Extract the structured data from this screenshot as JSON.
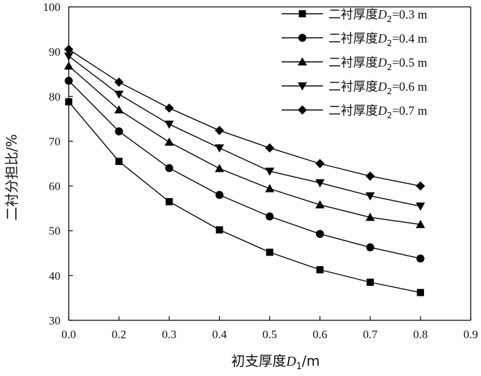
{
  "chart_data": {
    "type": "line",
    "title": "",
    "xlabel_prefix": "初支厚度",
    "xlabel_var": "D",
    "xlabel_sub": "1",
    "xlabel_unit": "/m",
    "ylabel": "二衬分担比/%",
    "xlim": [
      0.0,
      0.9
    ],
    "ylim": [
      30,
      100
    ],
    "x_ticks": [
      "0.0",
      "0.2",
      "0.3",
      "0.4",
      "0.5",
      "0.6",
      "0.7",
      "0.8",
      "0.9"
    ],
    "y_ticks": [
      "30",
      "40",
      "50",
      "60",
      "70",
      "80",
      "90",
      "100"
    ],
    "x_positions": [
      0,
      1,
      2,
      3,
      4,
      5,
      6,
      7
    ],
    "grid": false,
    "legend_position": "top-right",
    "series": [
      {
        "name_prefix": "二衬厚度",
        "name_var": "D",
        "name_sub": "2",
        "name_suffix": "=0.3 m",
        "marker": "square",
        "values": [
          78.8,
          65.5,
          56.5,
          50.2,
          45.2,
          41.3,
          38.5,
          36.2
        ]
      },
      {
        "name_prefix": "二衬厚度",
        "name_var": "D",
        "name_sub": "2",
        "name_suffix": "=0.4 m",
        "marker": "circle",
        "values": [
          83.5,
          72.2,
          64.0,
          58.0,
          53.2,
          49.3,
          46.3,
          43.8
        ]
      },
      {
        "name_prefix": "二衬厚度",
        "name_var": "D",
        "name_sub": "2",
        "name_suffix": "=0.5 m",
        "marker": "triangle-up",
        "values": [
          86.8,
          77.0,
          69.8,
          63.9,
          59.4,
          55.8,
          53.0,
          51.4
        ]
      },
      {
        "name_prefix": "二衬厚度",
        "name_var": "D",
        "name_sub": "2",
        "name_suffix": "=0.6 m",
        "marker": "triangle-down",
        "values": [
          89.0,
          80.5,
          73.8,
          68.5,
          63.3,
          60.7,
          57.8,
          55.5
        ]
      },
      {
        "name_prefix": "二衬厚度",
        "name_var": "D",
        "name_sub": "2",
        "name_suffix": "=0.7 m",
        "marker": "diamond",
        "values": [
          90.5,
          83.2,
          77.4,
          72.4,
          68.5,
          65.0,
          62.2,
          60.0
        ]
      }
    ]
  }
}
